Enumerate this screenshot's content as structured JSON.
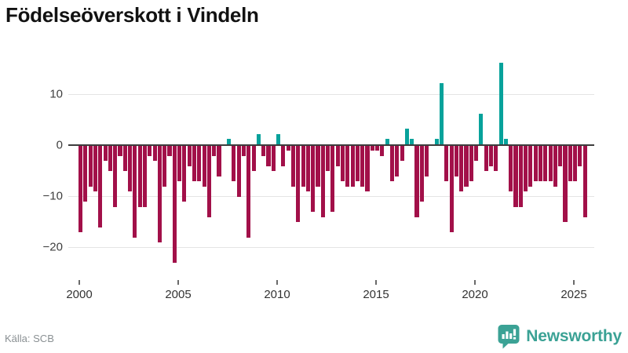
{
  "chart_data": {
    "type": "bar",
    "title": "Födelseöverskott i Vindeln",
    "start_year": 2000,
    "start_period": "2000Q1",
    "end_period": "2025Q3",
    "frequency": "quarterly",
    "values": [
      -17,
      -11,
      -8,
      -9,
      -16,
      -3,
      -5,
      -12,
      -2,
      -5,
      -9,
      -18,
      -12,
      -12,
      -2,
      -3,
      -19,
      -8,
      -2,
      -23,
      -7,
      -11,
      -4,
      -7,
      -7,
      -8,
      -14,
      -2,
      -6,
      0,
      1,
      -7,
      -10,
      -2,
      -18,
      -5,
      2,
      -2,
      -4,
      -5,
      2,
      -4,
      -1,
      -8,
      -15,
      -8,
      -9,
      -13,
      -8,
      -14,
      -5,
      -13,
      -4,
      -7,
      -8,
      -8,
      -7,
      -8,
      -9,
      -1,
      -1,
      -2,
      1,
      -7,
      -6,
      -3,
      3,
      1,
      -14,
      -11,
      -6,
      0,
      1,
      12,
      -7,
      -17,
      -6,
      -9,
      -8,
      -7,
      -3,
      6,
      -5,
      -4,
      -5,
      16,
      1,
      -9,
      -12,
      -12,
      -9,
      -8,
      -7,
      -7,
      -7,
      -7,
      -8,
      -4,
      -15,
      -7,
      -7,
      -4,
      -14
    ],
    "y_ticks": [
      {
        "value": 10,
        "label": "10"
      },
      {
        "value": 0,
        "label": "0"
      },
      {
        "value": -10,
        "label": "−10"
      },
      {
        "value": -20,
        "label": "−20"
      }
    ],
    "x_ticks": [
      "2000",
      "2005",
      "2010",
      "2015",
      "2020",
      "2025"
    ],
    "ylim": [
      -25,
      17
    ],
    "grid": true,
    "legend": "none",
    "colors": {
      "positive_bar": "#07a29b",
      "negative_bar": "#a21049",
      "zero_line": "#3d3d3d",
      "gridline": "#e4e4e4",
      "axis_label": "#3f3f3f",
      "title": "#121212"
    }
  },
  "footer": {
    "source_label": "Källa: SCB",
    "brand_name": "Newsworthy",
    "brand_color": "#3ba295"
  }
}
